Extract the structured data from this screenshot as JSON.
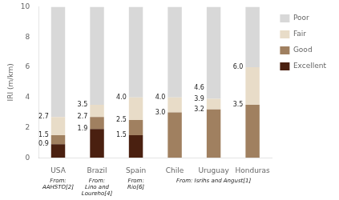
{
  "chart_data": {
    "type": "bar",
    "stacked": true,
    "categories": [
      "USA",
      "Brazil",
      "Spain",
      "Chile",
      "Uruguay",
      "Honduras"
    ],
    "series": [
      {
        "name": "Excellent",
        "color": "#4a2010",
        "values": [
          0.9,
          1.9,
          1.5,
          0.0,
          0.0,
          0.0
        ]
      },
      {
        "name": "Good",
        "color": "#a08060",
        "values": [
          0.6,
          0.8,
          1.0,
          3.0,
          3.2,
          3.5
        ]
      },
      {
        "name": "Fair",
        "color": "#e8dcc8",
        "values": [
          1.2,
          0.8,
          1.5,
          1.0,
          0.7,
          2.5
        ]
      },
      {
        "name": "Poor",
        "color": "#d8d8d8",
        "values": [
          7.3,
          6.5,
          6.0,
          6.0,
          6.1,
          4.0
        ]
      }
    ],
    "ylabel": "IRI (m/km)",
    "ylim": [
      0,
      10
    ],
    "yticks": [
      0,
      2,
      4,
      6,
      8,
      10
    ],
    "grid": false,
    "legend": "upper right",
    "annotations": [
      {
        "text": "0.9",
        "x": "USA",
        "y": 0.9
      },
      {
        "text": "1.5",
        "x": "USA",
        "y": 1.5
      },
      {
        "text": "2.7",
        "x": "USA",
        "y": 2.7
      },
      {
        "text": "1.9",
        "x": "Brazil",
        "y": 1.9
      },
      {
        "text": "2.7",
        "x": "Brazil",
        "y": 2.7
      },
      {
        "text": "3.5",
        "x": "Brazil",
        "y": 3.5
      },
      {
        "text": "1.5",
        "x": "Spain",
        "y": 1.5
      },
      {
        "text": "2.5",
        "x": "Spain",
        "y": 2.5
      },
      {
        "text": "4.0",
        "x": "Spain",
        "y": 4.0
      },
      {
        "text": "3.0",
        "x": "Chile",
        "y": 3.0
      },
      {
        "text": "4.0",
        "x": "Chile",
        "y": 4.0
      },
      {
        "text": "3.2",
        "x": "Uruguay",
        "y": 3.2
      },
      {
        "text": "3.9",
        "x": "Uruguay",
        "y": 3.9
      },
      {
        "text": "4.6",
        "x": "Uruguay",
        "y": 4.6
      },
      {
        "text": "3.5",
        "x": "Honduras",
        "y": 3.5
      },
      {
        "text": "6.0",
        "x": "Honduras",
        "y": 6.0
      },
      {
        "text": "From:\nAAHSTO[2]",
        "x": "USA"
      },
      {
        "text": "From:\nLino and\nLoureho[4]",
        "x": "Brazil"
      },
      {
        "text": "From:\nRio[6]",
        "x": "Spain"
      },
      {
        "text": "From: Isrihs and Angust[1]",
        "x": "Uruguay"
      }
    ]
  }
}
